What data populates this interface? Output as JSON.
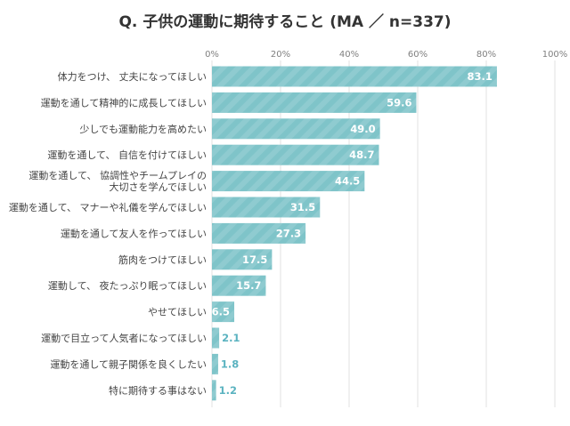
{
  "chart_data": {
    "type": "bar",
    "orientation": "horizontal",
    "title": "Q. 子供の運動に期待すること (MA ／ n=337)",
    "xlabel": "",
    "ylabel": "",
    "xlim": [
      0,
      100
    ],
    "x_ticks": [
      "0%",
      "20%",
      "40%",
      "60%",
      "80%",
      "100%"
    ],
    "grid": true,
    "bar_color": "#7fc4c9",
    "value_color_outside": "#5bb3c0",
    "categories": [
      [
        "体力をつけ、 丈夫になってほしい"
      ],
      [
        "運動を通して精神的に成長してほしい"
      ],
      [
        "少しでも運動能力を高めたい"
      ],
      [
        "運動を通して、 自信を付けてほしい"
      ],
      [
        "運動を通して、 協調性やチームプレイの",
        "大切さを学んでほしい"
      ],
      [
        "運動を通して、 マナーや礼儀を学んでほしい"
      ],
      [
        "運動を通して友人を作ってほしい"
      ],
      [
        "筋肉をつけてほしい"
      ],
      [
        "運動して、 夜たっぷり眠ってほしい"
      ],
      [
        "やせてほしい"
      ],
      [
        "運動で目立って人気者になってほしい"
      ],
      [
        "運動を通して親子関係を良くしたい"
      ],
      [
        "特に期待する事はない"
      ]
    ],
    "values": [
      83.1,
      59.6,
      49.0,
      48.7,
      44.5,
      31.5,
      27.3,
      17.5,
      15.7,
      6.5,
      2.1,
      1.8,
      1.2
    ],
    "value_labels": [
      "83.1",
      "59.6",
      "49.0",
      "48.7",
      "44.5",
      "31.5",
      "27.3",
      "17.5",
      "15.7",
      "6.5",
      "2.1",
      "1.8",
      "1.2"
    ]
  }
}
